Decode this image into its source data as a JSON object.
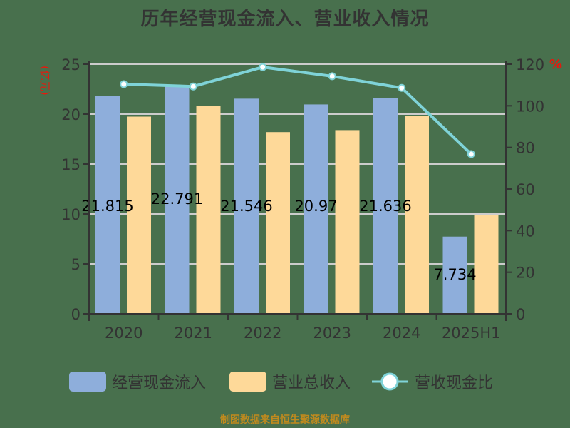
{
  "title": "历年经营现金流入、营业收入情况",
  "footer": "制图数据来自恒生聚源数据库",
  "colors": {
    "background": "#48704d",
    "cash_inflow": "#8eaedb",
    "revenue": "#fed999",
    "ratio_line": "#7fd3d8",
    "axis_unit": "#e8180c",
    "text": "#333333",
    "grid": "#cccccc"
  },
  "chart_data": {
    "type": "bar",
    "title": "历年经营现金流入、营业收入情况",
    "xlabel": "",
    "ylabel": "(亿元)",
    "y2label": "%",
    "categories": [
      "2020",
      "2021",
      "2022",
      "2023",
      "2024",
      "2025H1"
    ],
    "ylim": [
      0,
      25
    ],
    "y_ticks": [
      0,
      5,
      10,
      15,
      20,
      25
    ],
    "y2lim": [
      0,
      120
    ],
    "y2_ticks": [
      0,
      20,
      40,
      60,
      80,
      100,
      120
    ],
    "grid": true,
    "legend_position": "bottom",
    "series": [
      {
        "name": "经营现金流入",
        "type": "bar",
        "axis": "left",
        "values": [
          21.815,
          22.791,
          21.546,
          20.97,
          21.636,
          7.734
        ],
        "labels": [
          "21.815",
          "22.791",
          "21.546",
          "20.97",
          "21.636",
          "7.734"
        ]
      },
      {
        "name": "营业总收入",
        "type": "bar",
        "axis": "left",
        "values": [
          19.75,
          20.85,
          18.2,
          18.4,
          19.85,
          9.9
        ]
      },
      {
        "name": "营收现金比",
        "type": "line",
        "axis": "right",
        "values": [
          110.4,
          109.3,
          118.6,
          114.2,
          108.6,
          76.8
        ]
      }
    ]
  },
  "legend": [
    {
      "label": "经营现金流入",
      "kind": "bar"
    },
    {
      "label": "营业总收入",
      "kind": "bar"
    },
    {
      "label": "营收现金比",
      "kind": "line"
    }
  ]
}
